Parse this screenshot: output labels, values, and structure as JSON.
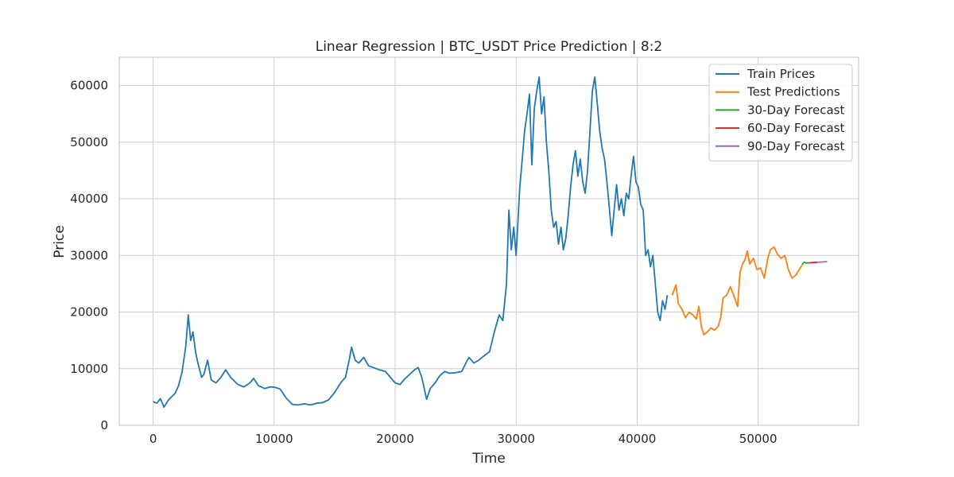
{
  "chart_data": {
    "type": "line",
    "title": "Linear Regression | BTC_USDT Price Prediction | 8:2",
    "xlabel": "Time",
    "ylabel": "Price",
    "xlim": [
      -2800,
      58300
    ],
    "ylim": [
      0,
      65000
    ],
    "x_ticks": [
      0,
      10000,
      20000,
      30000,
      40000,
      50000
    ],
    "y_ticks": [
      0,
      10000,
      20000,
      30000,
      40000,
      50000,
      60000
    ],
    "grid": true,
    "legend_position": "top-right",
    "series": [
      {
        "name": "Train Prices",
        "color": "#1f77b4",
        "points": [
          [
            0,
            4200
          ],
          [
            300,
            3900
          ],
          [
            600,
            4700
          ],
          [
            900,
            3200
          ],
          [
            1200,
            4300
          ],
          [
            1500,
            5000
          ],
          [
            1800,
            5600
          ],
          [
            2100,
            7000
          ],
          [
            2400,
            9500
          ],
          [
            2700,
            14000
          ],
          [
            2900,
            19500
          ],
          [
            3100,
            15000
          ],
          [
            3300,
            16500
          ],
          [
            3500,
            13000
          ],
          [
            3700,
            11000
          ],
          [
            4000,
            8500
          ],
          [
            4200,
            9000
          ],
          [
            4500,
            11500
          ],
          [
            4800,
            8000
          ],
          [
            5200,
            7500
          ],
          [
            5600,
            8500
          ],
          [
            6000,
            9800
          ],
          [
            6400,
            8500
          ],
          [
            7000,
            7200
          ],
          [
            7500,
            6800
          ],
          [
            8000,
            7500
          ],
          [
            8300,
            8300
          ],
          [
            8700,
            7000
          ],
          [
            9200,
            6500
          ],
          [
            9700,
            6800
          ],
          [
            10100,
            6700
          ],
          [
            10500,
            6400
          ],
          [
            11000,
            4800
          ],
          [
            11500,
            3700
          ],
          [
            12000,
            3600
          ],
          [
            12500,
            3800
          ],
          [
            13000,
            3600
          ],
          [
            13500,
            3900
          ],
          [
            14000,
            4000
          ],
          [
            14500,
            4500
          ],
          [
            15000,
            5800
          ],
          [
            15500,
            7500
          ],
          [
            15900,
            8500
          ],
          [
            16200,
            11500
          ],
          [
            16400,
            13800
          ],
          [
            16700,
            11500
          ],
          [
            17000,
            11000
          ],
          [
            17400,
            12000
          ],
          [
            17800,
            10500
          ],
          [
            18200,
            10200
          ],
          [
            18700,
            9800
          ],
          [
            19200,
            9500
          ],
          [
            19600,
            8500
          ],
          [
            20000,
            7500
          ],
          [
            20400,
            7200
          ],
          [
            20800,
            8200
          ],
          [
            21200,
            9000
          ],
          [
            21600,
            9800
          ],
          [
            21900,
            10200
          ],
          [
            22200,
            8500
          ],
          [
            22600,
            4600
          ],
          [
            22900,
            6500
          ],
          [
            23300,
            7500
          ],
          [
            23700,
            8800
          ],
          [
            24100,
            9500
          ],
          [
            24500,
            9200
          ],
          [
            25000,
            9300
          ],
          [
            25500,
            9500
          ],
          [
            25800,
            10800
          ],
          [
            26100,
            12000
          ],
          [
            26500,
            11000
          ],
          [
            26900,
            11500
          ],
          [
            27300,
            12200
          ],
          [
            27800,
            13000
          ],
          [
            28200,
            16500
          ],
          [
            28600,
            19500
          ],
          [
            28900,
            18500
          ],
          [
            29200,
            25000
          ],
          [
            29400,
            38000
          ],
          [
            29600,
            31000
          ],
          [
            29800,
            35000
          ],
          [
            30000,
            30000
          ],
          [
            30300,
            42000
          ],
          [
            30500,
            47000
          ],
          [
            30700,
            52000
          ],
          [
            30900,
            55000
          ],
          [
            31100,
            58500
          ],
          [
            31300,
            46000
          ],
          [
            31500,
            56000
          ],
          [
            31700,
            59000
          ],
          [
            31900,
            61500
          ],
          [
            32100,
            55000
          ],
          [
            32300,
            58000
          ],
          [
            32500,
            50000
          ],
          [
            32700,
            45000
          ],
          [
            32900,
            38000
          ],
          [
            33100,
            35000
          ],
          [
            33300,
            36000
          ],
          [
            33500,
            32000
          ],
          [
            33700,
            35000
          ],
          [
            33900,
            31000
          ],
          [
            34100,
            33000
          ],
          [
            34300,
            37000
          ],
          [
            34500,
            42000
          ],
          [
            34700,
            46000
          ],
          [
            34900,
            48500
          ],
          [
            35100,
            44000
          ],
          [
            35300,
            47000
          ],
          [
            35500,
            43000
          ],
          [
            35700,
            41000
          ],
          [
            35900,
            45000
          ],
          [
            36100,
            52000
          ],
          [
            36300,
            59000
          ],
          [
            36500,
            61500
          ],
          [
            36700,
            57000
          ],
          [
            36900,
            52000
          ],
          [
            37100,
            49000
          ],
          [
            37300,
            47000
          ],
          [
            37500,
            43000
          ],
          [
            37700,
            38500
          ],
          [
            37900,
            33500
          ],
          [
            38100,
            38000
          ],
          [
            38300,
            42500
          ],
          [
            38500,
            38000
          ],
          [
            38700,
            40000
          ],
          [
            38900,
            37000
          ],
          [
            39100,
            41000
          ],
          [
            39300,
            40000
          ],
          [
            39500,
            44000
          ],
          [
            39700,
            47500
          ],
          [
            39900,
            43000
          ],
          [
            40100,
            42000
          ],
          [
            40300,
            39000
          ],
          [
            40500,
            38000
          ],
          [
            40700,
            30000
          ],
          [
            40900,
            31000
          ],
          [
            41100,
            28000
          ],
          [
            41300,
            30000
          ],
          [
            41500,
            25000
          ],
          [
            41700,
            20000
          ],
          [
            41900,
            18500
          ],
          [
            42100,
            22000
          ],
          [
            42300,
            20500
          ],
          [
            42500,
            23000
          ]
        ]
      },
      {
        "name": "Test Predictions",
        "color": "#ff7f0e",
        "points": [
          [
            42900,
            23000
          ],
          [
            43200,
            24800
          ],
          [
            43400,
            21500
          ],
          [
            43700,
            20500
          ],
          [
            44000,
            19000
          ],
          [
            44300,
            20000
          ],
          [
            44600,
            19500
          ],
          [
            44900,
            18800
          ],
          [
            45100,
            21000
          ],
          [
            45300,
            17500
          ],
          [
            45500,
            16000
          ],
          [
            45800,
            16500
          ],
          [
            46100,
            17200
          ],
          [
            46400,
            16800
          ],
          [
            46700,
            17500
          ],
          [
            46900,
            19000
          ],
          [
            47100,
            22500
          ],
          [
            47400,
            23000
          ],
          [
            47700,
            24500
          ],
          [
            48000,
            22800
          ],
          [
            48300,
            21000
          ],
          [
            48500,
            27000
          ],
          [
            48700,
            28500
          ],
          [
            48900,
            29200
          ],
          [
            49100,
            30800
          ],
          [
            49300,
            28500
          ],
          [
            49600,
            29500
          ],
          [
            49900,
            27500
          ],
          [
            50200,
            27800
          ],
          [
            50500,
            26000
          ],
          [
            50800,
            29500
          ],
          [
            51000,
            31000
          ],
          [
            51300,
            31500
          ],
          [
            51600,
            30200
          ],
          [
            51900,
            29500
          ],
          [
            52200,
            30000
          ],
          [
            52500,
            27500
          ],
          [
            52800,
            26000
          ],
          [
            53100,
            26500
          ],
          [
            53400,
            27500
          ],
          [
            53600,
            28200
          ]
        ]
      },
      {
        "name": "30-Day Forecast",
        "color": "#2ca02c",
        "points": [
          [
            53600,
            28300
          ],
          [
            53800,
            28800
          ],
          [
            54000,
            28650
          ],
          [
            54200,
            28700
          ]
        ]
      },
      {
        "name": "60-Day Forecast",
        "color": "#d62728",
        "points": [
          [
            54200,
            28700
          ],
          [
            54600,
            28750
          ],
          [
            54900,
            28800
          ]
        ]
      },
      {
        "name": "90-Day Forecast",
        "color": "#9467bd",
        "points": [
          [
            54900,
            28800
          ],
          [
            55300,
            28850
          ],
          [
            55700,
            28900
          ]
        ]
      }
    ]
  }
}
